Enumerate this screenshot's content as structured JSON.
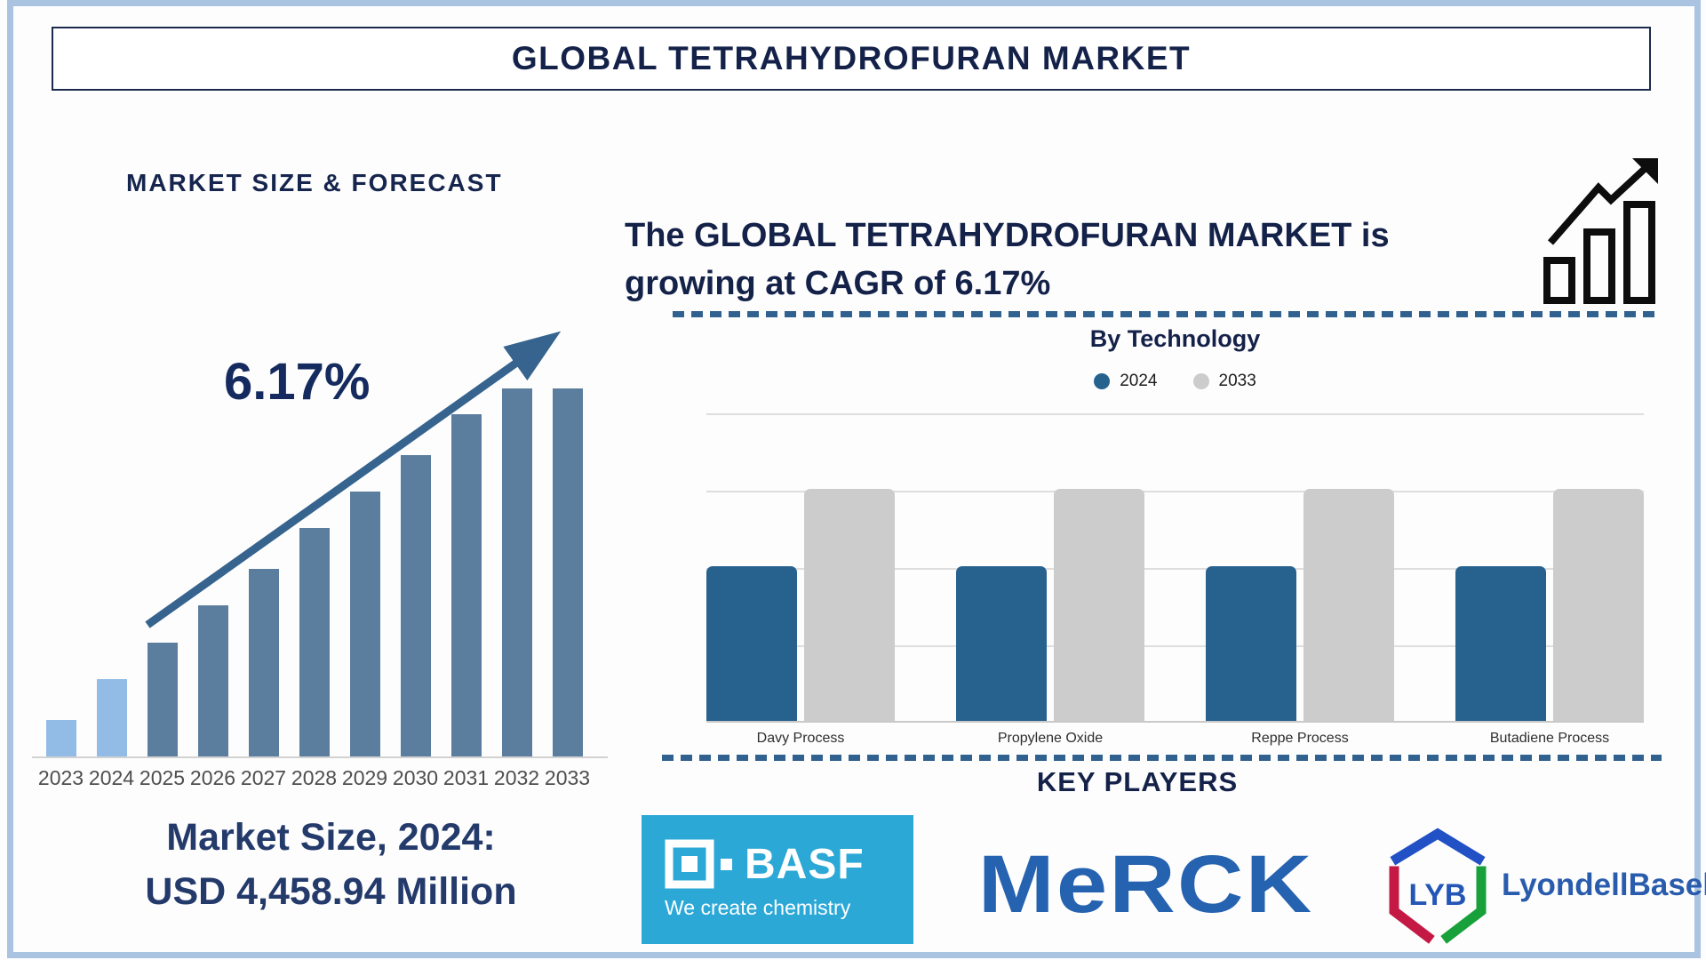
{
  "page": {
    "title": "GLOBAL TETRAHYDROFURAN MARKET"
  },
  "left": {
    "heading": "MARKET SIZE & FORECAST",
    "cagr_label": "6.17%",
    "market_size_line1": "Market Size, 2024:",
    "market_size_line2": "USD 4,458.94 Million"
  },
  "right": {
    "headline_line1": "The GLOBAL TETRAHYDROFURAN MARKET is",
    "headline_line2": "growing at CAGR of 6.17%",
    "by_technology_title": "By Technology",
    "key_players_title": "KEY PLAYERS"
  },
  "logos": {
    "basf_name": "BASF",
    "basf_tagline": "We create chemistry",
    "merck_name": "MeRCK",
    "lyb_abbr": "LYB",
    "lyb_name": "LyondellBasell"
  },
  "colors": {
    "navy_text": "#14224a",
    "frame_blue": "#a9c3e1",
    "forecast_bar": "#5c7e9e",
    "forecast_bar_highlight": "#92bce6",
    "arrow_blue": "#36648e",
    "dash_blue": "#31628f",
    "tech_2024_blue": "#27628f",
    "tech_2033_grey": "#cccccc",
    "basf_bg": "#2ca8d6",
    "merck_blue": "#2562b0",
    "lyb_blue": "#2151c5",
    "lyb_red": "#c41944",
    "lyb_green": "#18a13b"
  },
  "chart_data": [
    {
      "type": "bar",
      "title": "MARKET SIZE & FORECAST",
      "categories": [
        "2023",
        "2024",
        "2025",
        "2026",
        "2027",
        "2028",
        "2029",
        "2030",
        "2031",
        "2032",
        "2033"
      ],
      "values_relative": [
        0.1,
        0.21,
        0.31,
        0.41,
        0.51,
        0.62,
        0.72,
        0.82,
        0.93,
        1.0,
        1.0
      ],
      "highlight_years": [
        "2023",
        "2024"
      ],
      "bar_color": "#5c7e9e",
      "highlight_color": "#92bce6",
      "ylabel": "",
      "xlabel": "",
      "yaxis_ticks": "none shown (stylized infographic, relative heights only)",
      "annotations": [
        "6.17% CAGR arrow",
        "Market Size, 2024: USD 4,458.94 Million"
      ]
    },
    {
      "type": "bar",
      "title": "By Technology",
      "categories": [
        "Davy Process",
        "Propylene Oxide",
        "Reppe Process",
        "Butadiene Process"
      ],
      "series": [
        {
          "name": "2024",
          "color": "#27628f",
          "values_relative": [
            0.5,
            0.5,
            0.5,
            0.5
          ]
        },
        {
          "name": "2033",
          "color": "#cccccc",
          "values_relative": [
            0.75,
            0.75,
            0.75,
            0.75
          ]
        }
      ],
      "legend_position": "top",
      "grid": true,
      "yaxis_ticks": "none shown (relative heights only)"
    }
  ]
}
